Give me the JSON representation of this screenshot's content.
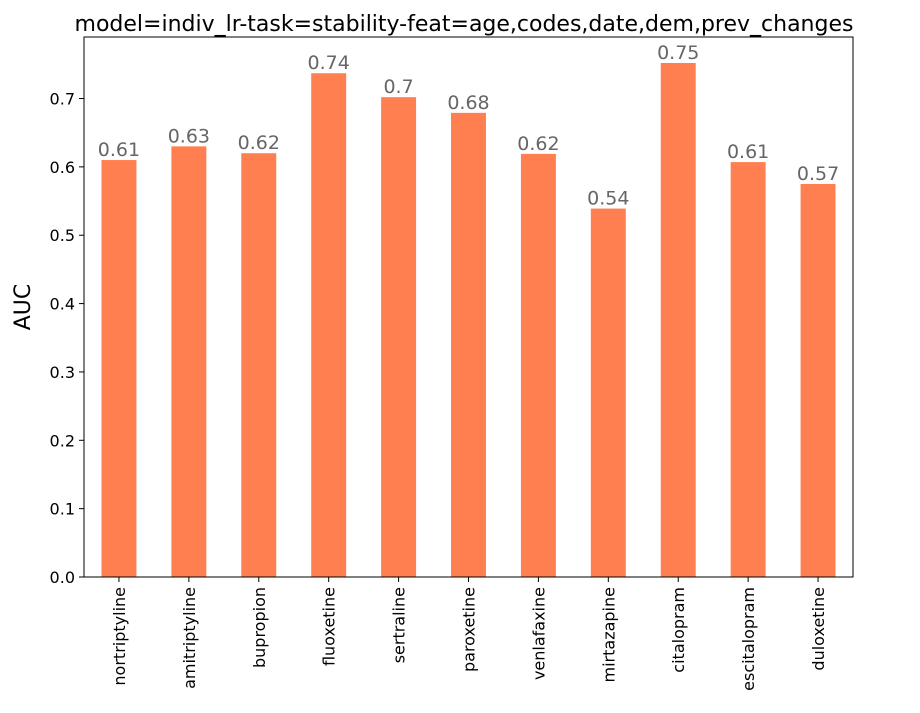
{
  "chart_data": {
    "type": "bar",
    "title": "model=indiv_lr-task=stability-feat=age,codes,date,dem,prev_changes",
    "xlabel": "",
    "ylabel": "AUC",
    "ylim": [
      0,
      0.79
    ],
    "yticks": [
      "0.0",
      "0.1",
      "0.2",
      "0.3",
      "0.4",
      "0.5",
      "0.6",
      "0.7"
    ],
    "grid": false,
    "bar_color": "#ff7f50",
    "label_color": "#666666",
    "categories": [
      "nortriptyline",
      "amitriptyline",
      "bupropion",
      "fluoxetine",
      "sertraline",
      "paroxetine",
      "venlafaxine",
      "mirtazapine",
      "citalopram",
      "escitalopram",
      "duloxetine"
    ],
    "values": [
      0.61,
      0.63,
      0.62,
      0.737,
      0.702,
      0.679,
      0.619,
      0.539,
      0.752,
      0.607,
      0.575
    ],
    "data_labels": [
      "0.61",
      "0.63",
      "0.62",
      "0.74",
      "0.7",
      "0.68",
      "0.62",
      "0.54",
      "0.75",
      "0.61",
      "0.57"
    ]
  }
}
